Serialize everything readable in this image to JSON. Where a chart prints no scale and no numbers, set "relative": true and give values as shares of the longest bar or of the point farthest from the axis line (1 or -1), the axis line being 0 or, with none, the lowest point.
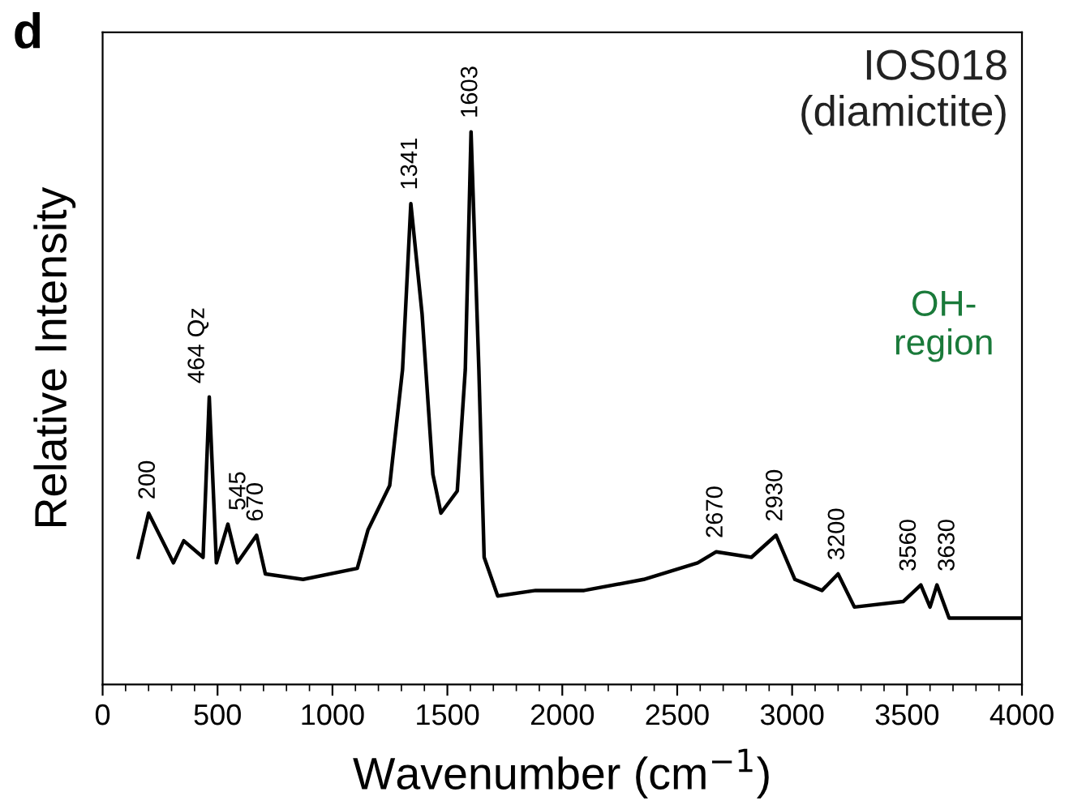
{
  "chart_data": {
    "type": "line",
    "relative": true,
    "title": "IOS018\n(diamictite)",
    "xlabel": "Wavenumber (cm$^{−1}$)",
    "ylabel": "Relative Intensity",
    "x": [
      155,
      200,
      308,
      353,
      437,
      464,
      495,
      545,
      586,
      670,
      708,
      872,
      1108,
      1155,
      1249,
      1305,
      1341,
      1390,
      1437,
      1472,
      1543,
      1578,
      1603,
      1637,
      1660,
      1719,
      1884,
      2095,
      2354,
      2589,
      2670,
      2823,
      2930,
      3012,
      3130,
      3200,
      3271,
      3483,
      3560,
      3600,
      3630,
      3683,
      4000
    ],
    "series": [
      {
        "color": "#000000",
        "values": [
          0.23,
          0.31,
          0.22,
          0.26,
          0.23,
          0.52,
          0.22,
          0.29,
          0.22,
          0.27,
          0.2,
          0.19,
          0.21,
          0.28,
          0.36,
          0.57,
          0.87,
          0.67,
          0.38,
          0.31,
          0.35,
          0.57,
          1.0,
          0.57,
          0.23,
          0.16,
          0.17,
          0.17,
          0.19,
          0.22,
          0.24,
          0.23,
          0.27,
          0.19,
          0.17,
          0.2,
          0.14,
          0.15,
          0.18,
          0.14,
          0.18,
          0.12,
          0.12
        ]
      }
    ],
    "xlim": [
      0,
      4000
    ],
    "xticks": [
      0,
      500,
      1000,
      1500,
      2000,
      2500,
      3000,
      3500,
      4000
    ],
    "tick_labels": "x",
    "grid": false,
    "legend": false,
    "marker": "none",
    "line_style": "solid",
    "annotations": [
      {
        "text": "200",
        "x": 200,
        "y": 0.31
      },
      {
        "text": "464 Qz",
        "x": 464,
        "y": 0.52
      },
      {
        "text": "545",
        "x": 545,
        "y": 0.29
      },
      {
        "text": "670",
        "x": 670,
        "y": 0.27
      },
      {
        "text": "1341",
        "x": 1341,
        "y": 0.87
      },
      {
        "text": "1603",
        "x": 1603,
        "y": 1.0
      },
      {
        "text": "2670",
        "x": 2670,
        "y": 0.24
      },
      {
        "text": "2930",
        "x": 2930,
        "y": 0.27
      },
      {
        "text": "3200",
        "x": 3200,
        "y": 0.2
      },
      {
        "text": "3560",
        "x": 3560,
        "y": 0.18
      },
      {
        "text": "3630",
        "x": 3630,
        "y": 0.18
      },
      "OH-\nregion",
      "d"
    ]
  }
}
